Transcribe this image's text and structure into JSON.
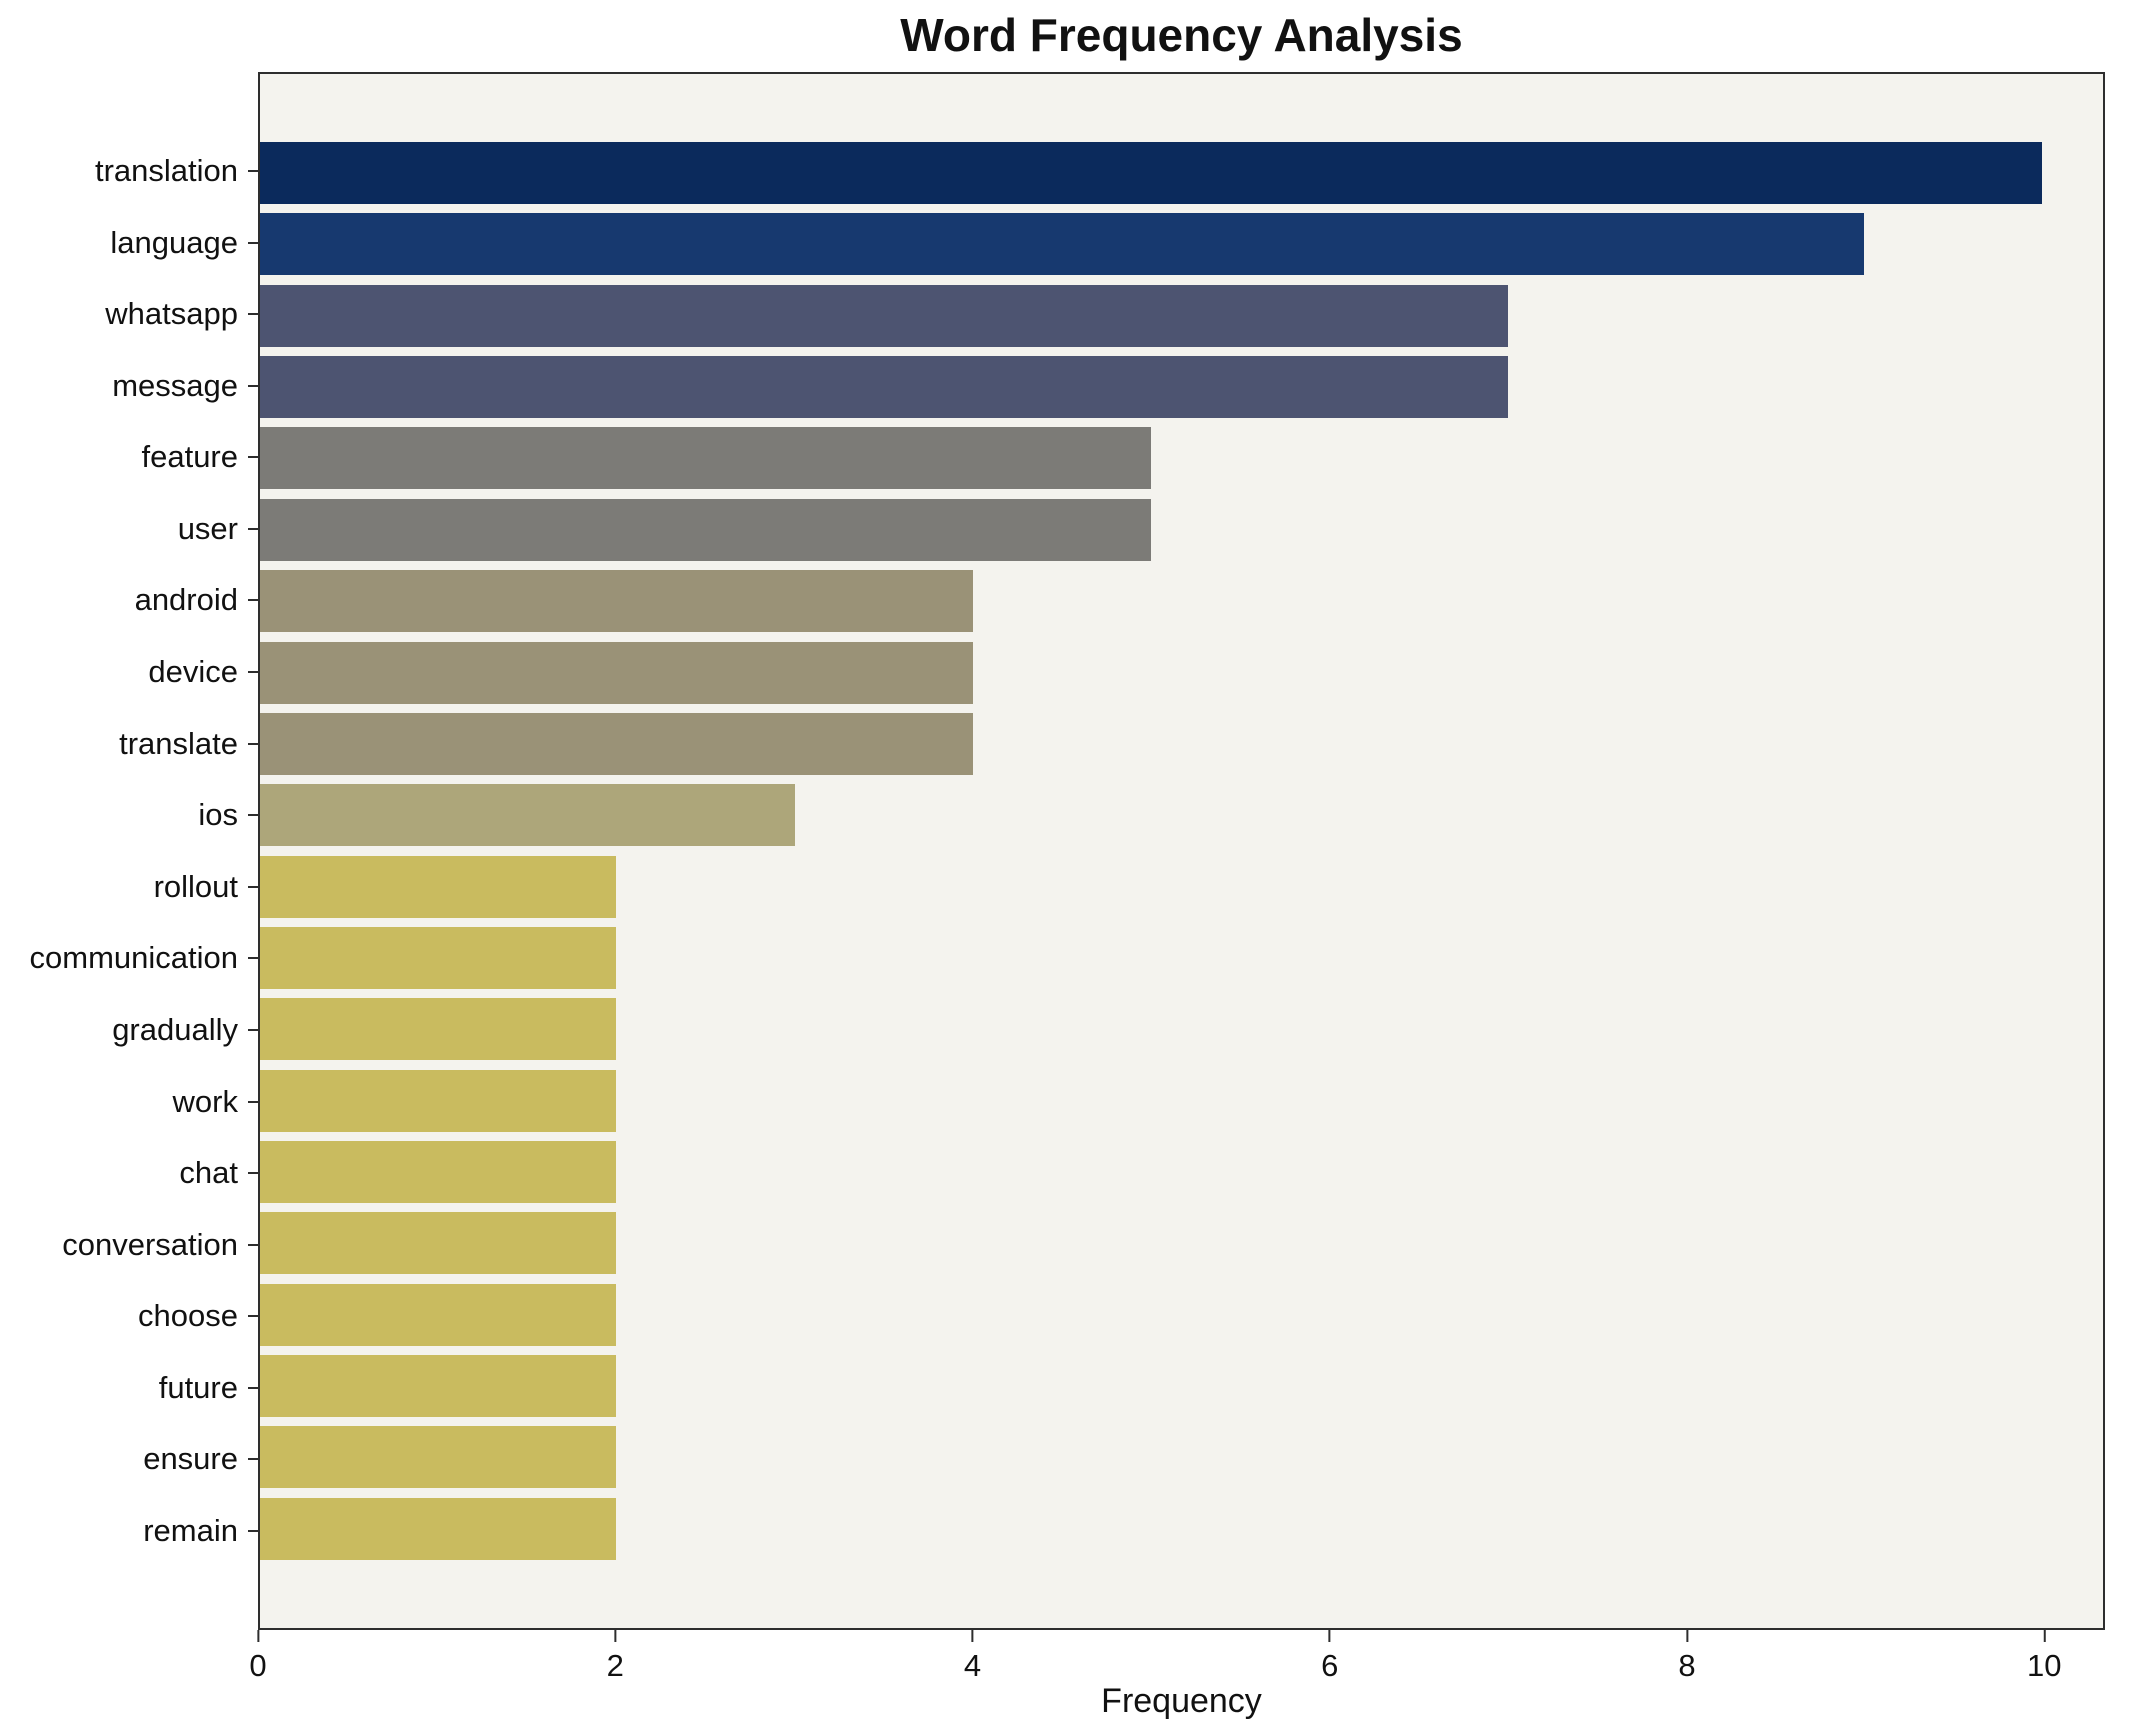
{
  "chart_data": {
    "type": "bar",
    "orientation": "horizontal",
    "title": "Word Frequency Analysis",
    "xlabel": "Frequency",
    "ylabel": "",
    "xlim": [
      0,
      10.34
    ],
    "xticks": [
      0,
      2,
      4,
      6,
      8,
      10
    ],
    "grid": false,
    "legend": "none",
    "plot_background": "#f4f3ee",
    "spine_color": "#2e2e2e",
    "categories": [
      "translation",
      "language",
      "whatsapp",
      "message",
      "feature",
      "user",
      "android",
      "device",
      "translate",
      "ios",
      "rollout",
      "communication",
      "gradually",
      "work",
      "chat",
      "conversation",
      "choose",
      "future",
      "ensure",
      "remain"
    ],
    "values": [
      10,
      9,
      7,
      7,
      5,
      5,
      4,
      4,
      4,
      3,
      2,
      2,
      2,
      2,
      2,
      2,
      2,
      2,
      2,
      2
    ],
    "colors": [
      "#0b2a5c",
      "#17396f",
      "#4d5471",
      "#4d5471",
      "#7c7b77",
      "#7c7b77",
      "#9a9277",
      "#9a9277",
      "#9a9277",
      "#ada67a",
      "#c9bb5f",
      "#c9bb5f",
      "#c9bb5f",
      "#c9bb5f",
      "#c9bb5f",
      "#c9bb5f",
      "#c9bb5f",
      "#c9bb5f",
      "#c9bb5f",
      "#c9bb5f"
    ]
  }
}
